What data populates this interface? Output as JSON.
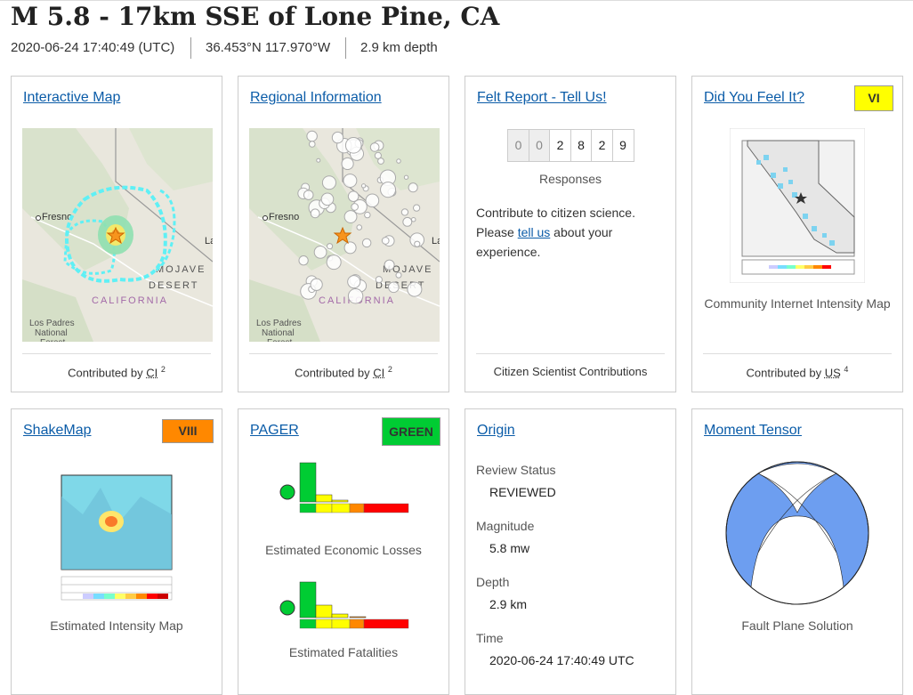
{
  "header": {
    "title": "M 5.8 - 17km SSE of Lone Pine, CA",
    "time": "2020-06-24 17:40:49 (UTC)",
    "location": "36.453°N 117.970°W",
    "depth": "2.9 km depth"
  },
  "interactive_map": {
    "title": "Interactive Map",
    "labels": [
      "Fresno",
      "MOJAVE",
      "DESERT",
      "CALIFORNIA",
      "Los Padres",
      "National",
      "Forest",
      "La"
    ],
    "contributed": "Contributed by",
    "source": "CI",
    "note": "2"
  },
  "regional": {
    "title": "Regional Information",
    "labels": [
      "Fresno",
      "MOJAVE",
      "DESERT",
      "CALIFORNIA",
      "Los Padres",
      "National",
      "Forest",
      "La"
    ],
    "contributed": "Contributed by",
    "source": "CI",
    "note": "2"
  },
  "felt_report": {
    "title": "Felt Report - Tell Us!",
    "digits": [
      "0",
      "0",
      "2",
      "8",
      "2",
      "9"
    ],
    "responses": "Responses",
    "text1": "Contribute to citizen science.",
    "text2": "Please",
    "link": "tell us",
    "text3": "about your experience.",
    "footer": "Citizen Scientist Contributions"
  },
  "dyfi": {
    "title": "Did You Feel It?",
    "badge": "VI",
    "caption": "Community Internet Intensity Map",
    "contributed": "Contributed by",
    "source": "US",
    "note": "4"
  },
  "shakemap": {
    "title": "ShakeMap",
    "badge": "VIII",
    "caption": "Estimated Intensity Map"
  },
  "pager": {
    "title": "PAGER",
    "badge": "GREEN",
    "captions": [
      "Estimated Economic Losses",
      "Estimated Fatalities"
    ]
  },
  "origin": {
    "title": "Origin",
    "rows": [
      {
        "label": "Review Status",
        "value": "REVIEWED"
      },
      {
        "label": "Magnitude",
        "value": "5.8 mw"
      },
      {
        "label": "Depth",
        "value": "2.9 km"
      },
      {
        "label": "Time",
        "value": "2020-06-24 17:40:49 UTC"
      }
    ]
  },
  "moment_tensor": {
    "title": "Moment Tensor",
    "caption": "Fault Plane Solution"
  }
}
